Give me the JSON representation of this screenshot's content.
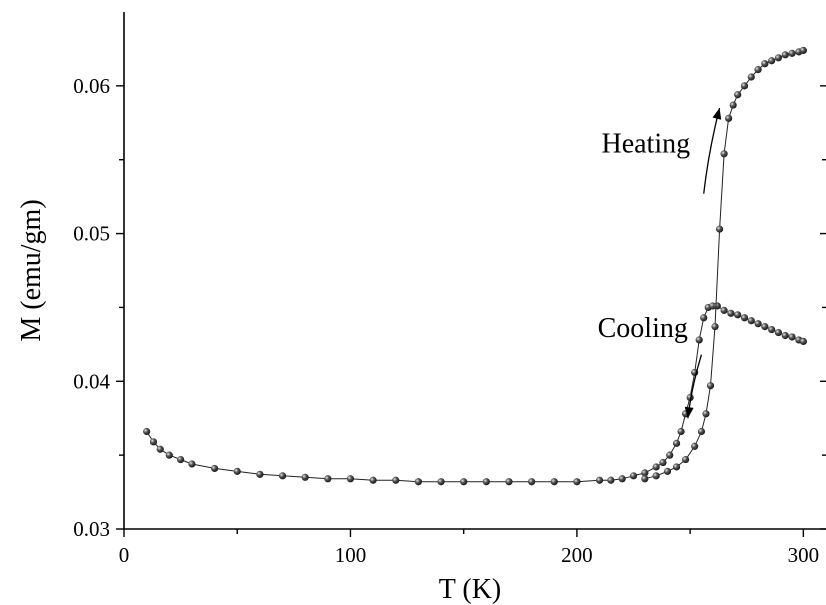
{
  "chart_data": {
    "type": "scatter",
    "title": "",
    "xlabel": "T (K)",
    "ylabel": "M (emu/gm)",
    "xlim": [
      0,
      310
    ],
    "ylim": [
      0.03,
      0.065
    ],
    "xticks": [
      0,
      100,
      200,
      300
    ],
    "yticks": [
      0.03,
      0.04,
      0.05,
      0.06
    ],
    "x_tick_labels": [
      "0",
      "100",
      "200",
      "300"
    ],
    "y_tick_labels": [
      "0.03",
      "0.04",
      "0.05",
      "0.06"
    ],
    "grid": false,
    "marker_color": "#1a1a1a",
    "series": [
      {
        "x": [
          10,
          13,
          16,
          20,
          25,
          30,
          40,
          50,
          60,
          70,
          80,
          90,
          100,
          110,
          120,
          130,
          140,
          150,
          160,
          170,
          180,
          190,
          200,
          210,
          215,
          220,
          225,
          230,
          235,
          238,
          241,
          244,
          246,
          248,
          250,
          252,
          254,
          256,
          258,
          260
        ],
        "y": [
          0.0366,
          0.0359,
          0.0354,
          0.035,
          0.0347,
          0.0344,
          0.0341,
          0.0339,
          0.0337,
          0.0336,
          0.0335,
          0.0334,
          0.0334,
          0.0333,
          0.0333,
          0.0332,
          0.0332,
          0.0332,
          0.0332,
          0.0332,
          0.0332,
          0.0332,
          0.0332,
          0.0333,
          0.0333,
          0.0334,
          0.0336,
          0.0338,
          0.0342,
          0.0345,
          0.035,
          0.0358,
          0.0366,
          0.0378,
          0.0389,
          0.0406,
          0.0428,
          0.0443,
          0.045,
          0.0451
        ]
      },
      {
        "x": [
          262,
          265,
          268,
          271,
          274,
          277,
          280,
          283,
          286,
          289,
          292,
          295,
          298,
          300
        ],
        "y": [
          0.0451,
          0.0448,
          0.0446,
          0.0445,
          0.0443,
          0.0441,
          0.0439,
          0.0437,
          0.0435,
          0.0433,
          0.0431,
          0.043,
          0.0428,
          0.0427
        ]
      },
      {
        "x": [
          230,
          235,
          240,
          244,
          248,
          252,
          255,
          257,
          259,
          261,
          263,
          265,
          267,
          269,
          271,
          274,
          277,
          280,
          283,
          286,
          289,
          292,
          295,
          298,
          300
        ],
        "y": [
          0.0334,
          0.0336,
          0.0339,
          0.0342,
          0.0347,
          0.0356,
          0.0366,
          0.0378,
          0.0397,
          0.0437,
          0.0503,
          0.0554,
          0.0578,
          0.0587,
          0.0594,
          0.06,
          0.0606,
          0.0611,
          0.0615,
          0.0617,
          0.0619,
          0.0621,
          0.0622,
          0.0623,
          0.0624
        ]
      }
    ],
    "annotations": [
      {
        "text": "Heating",
        "x": 250,
        "y": 0.0555
      },
      {
        "text": "Cooling",
        "x": 249,
        "y": 0.043
      }
    ],
    "arrows": [
      {
        "from": [
          256,
          0.0527
        ],
        "to": [
          263,
          0.0585
        ]
      },
      {
        "from": [
          255,
          0.0418
        ],
        "to": [
          249,
          0.0375
        ]
      }
    ]
  }
}
